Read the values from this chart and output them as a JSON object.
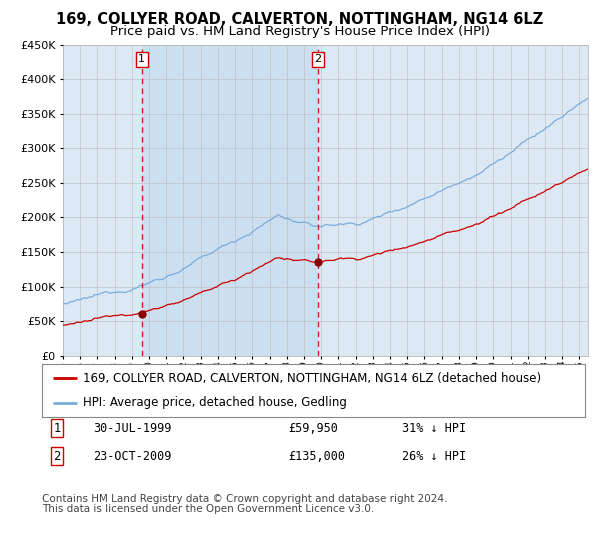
{
  "title": "169, COLLYER ROAD, CALVERTON, NOTTINGHAM, NG14 6LZ",
  "subtitle": "Price paid vs. HM Land Registry's House Price Index (HPI)",
  "legend_label_red": "169, COLLYER ROAD, CALVERTON, NOTTINGHAM, NG14 6LZ (detached house)",
  "legend_label_blue": "HPI: Average price, detached house, Gedling",
  "footnote_line1": "Contains HM Land Registry data © Crown copyright and database right 2024.",
  "footnote_line2": "This data is licensed under the Open Government Licence v3.0.",
  "table": [
    {
      "num": "1",
      "date": "30-JUL-1999",
      "price": "£59,950",
      "hpi": "31% ↓ HPI"
    },
    {
      "num": "2",
      "date": "23-OCT-2009",
      "price": "£135,000",
      "hpi": "26% ↓ HPI"
    }
  ],
  "sale1_year": 1999.57,
  "sale2_year": 2009.81,
  "sale1_price": 59950,
  "sale2_price": 135000,
  "ylim": [
    0,
    450000
  ],
  "xlim_start": 1995.0,
  "xlim_end": 2025.5,
  "background_color": "#ffffff",
  "plot_bg_color": "#dce9f5",
  "shade_color": "#ccdff0",
  "grid_color": "#bbbbbb",
  "red_line_color": "#cc0000",
  "blue_line_color": "#7aacdc",
  "dashed_color": "#cc0000",
  "marker_color": "#880000",
  "title_fontsize": 10.5,
  "subtitle_fontsize": 9.5,
  "axis_label_fontsize": 8,
  "legend_fontsize": 8.5,
  "footnote_fontsize": 7.5
}
